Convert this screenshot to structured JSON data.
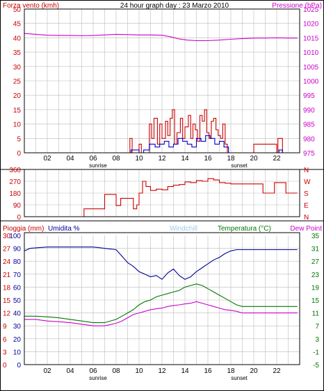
{
  "header": {
    "left_label": "Forza vento (kmh)",
    "title": "24 hour graph day : 23 Marzo 2010",
    "right_label": "Pressione (hPa)"
  },
  "labels": {
    "sunrise": "sunrise",
    "sunset": "sunset",
    "pioggia": "Pioggia (mm)",
    "umidita": "Umidita %",
    "windchill": "Windchill",
    "temperatura": "Temperatura (°C)",
    "dewpoint": "Dew Point"
  },
  "colors": {
    "wind": "#cc0000",
    "avgwind": "#0000cc",
    "pressure": "#cc00cc",
    "direction": "#cc0000",
    "humidity": "#000099",
    "rain": "#cc0000",
    "temperature": "#007700",
    "dewpoint": "#cc00cc",
    "windchill": "#99ccee",
    "grid": "#bbbbbb"
  },
  "chart_data": [
    {
      "type": "line",
      "name": "wind_pressure",
      "xticks": [
        "02",
        "04",
        "06",
        "08",
        "10",
        "12",
        "14",
        "16",
        "18",
        "20",
        "22"
      ],
      "xlim": [
        0,
        24
      ],
      "y_left": {
        "ticks": [
          "0",
          "5",
          "10",
          "15",
          "20",
          "25",
          "30",
          "35",
          "40",
          "45",
          "50"
        ],
        "ylim": [
          0,
          50
        ]
      },
      "y_right": {
        "ticks": [
          "975",
          "980",
          "985",
          "990",
          "995",
          "1000",
          "1005",
          "1010",
          "1015",
          "1020",
          "1025"
        ],
        "ylim": [
          975,
          1025
        ]
      },
      "series": [
        {
          "key": "pressure",
          "axis": "right",
          "x": [
            0,
            1,
            2,
            3,
            4,
            5,
            6,
            7,
            8,
            9,
            10,
            11,
            12,
            12.8,
            13.5,
            14.2,
            15,
            16,
            17,
            18,
            19,
            20,
            21,
            22,
            23,
            23.8
          ],
          "y": [
            1016.5,
            1016.2,
            1015.9,
            1015.8,
            1015.8,
            1015.7,
            1015.8,
            1016,
            1016.2,
            1016.1,
            1016,
            1016,
            1015.9,
            1015.3,
            1014.6,
            1014.2,
            1014,
            1014,
            1014.2,
            1014.5,
            1014.7,
            1014.9,
            1014.9,
            1015,
            1014.9,
            1014.9
          ]
        },
        {
          "key": "wind",
          "axis": "left",
          "step": true,
          "x": [
            0,
            9,
            9.2,
            9.4,
            10,
            10.2,
            10.4,
            10.9,
            11.1,
            11.3,
            11.6,
            11.8,
            12,
            12.3,
            12.5,
            12.7,
            12.9,
            13.1,
            13.3,
            13.6,
            13.8,
            14,
            14.3,
            14.5,
            14.7,
            14.9,
            15.1,
            15.3,
            15.5,
            15.7,
            15.9,
            16.1,
            16.3,
            16.5,
            16.7,
            16.9,
            17.1,
            17.3,
            17.5,
            17.7,
            17.9,
            19.8,
            20,
            22,
            22.1,
            22.5,
            23.8
          ],
          "y": [
            0,
            0,
            5,
            0,
            3,
            0,
            0,
            10,
            5,
            12,
            3,
            10,
            5,
            11,
            6,
            12,
            15,
            3,
            7,
            12,
            5,
            9,
            13,
            5,
            10,
            8,
            4,
            13,
            11,
            15,
            7,
            5,
            11,
            12,
            8,
            6,
            5,
            10,
            3,
            0,
            0,
            0,
            3,
            0,
            5,
            0,
            0
          ]
        },
        {
          "key": "avgwind",
          "axis": "left",
          "step": true,
          "x": [
            0,
            9,
            9.3,
            10,
            10.4,
            10.9,
            11.4,
            11.8,
            12.2,
            12.6,
            13,
            13.4,
            13.8,
            14.2,
            14.6,
            15,
            15.4,
            15.8,
            16.2,
            16.6,
            17,
            17.4,
            17.8,
            22,
            22.2,
            22.5,
            23.8
          ],
          "y": [
            0,
            0,
            1,
            0,
            1,
            3,
            2,
            3,
            4,
            2,
            3,
            5,
            4,
            3,
            2,
            5,
            4,
            6,
            5,
            3,
            4,
            2,
            0,
            0,
            1,
            0,
            0
          ]
        }
      ]
    },
    {
      "type": "line",
      "name": "wind_direction",
      "xticks": [
        "02",
        "04",
        "06",
        "08",
        "10",
        "12",
        "14",
        "16",
        "18",
        "20",
        "22"
      ],
      "xlim": [
        0,
        24
      ],
      "y_left": {
        "ticks": [
          "0",
          "90",
          "180",
          "270",
          "360"
        ],
        "ylim": [
          0,
          360
        ]
      },
      "y_right": {
        "ticks": [
          "N",
          "E",
          "S",
          "W",
          "N"
        ]
      },
      "series": [
        {
          "key": "direction",
          "step": true,
          "x": [
            0,
            5,
            5.2,
            6.8,
            7,
            7.8,
            8,
            8.4,
            9,
            9.5,
            9.8,
            10,
            10.3,
            10.6,
            11,
            11.5,
            12,
            12.5,
            13,
            13.5,
            14,
            14.5,
            15,
            15.5,
            16,
            16.5,
            17,
            17.5,
            18,
            19,
            20,
            20.6,
            20.8,
            21.6,
            21.8,
            22.3,
            22.8,
            23.8
          ],
          "y": [
            0,
            0,
            60,
            60,
            170,
            170,
            85,
            140,
            140,
            60,
            90,
            180,
            270,
            230,
            200,
            210,
            205,
            230,
            240,
            245,
            265,
            260,
            275,
            270,
            290,
            280,
            260,
            255,
            250,
            250,
            250,
            250,
            180,
            180,
            260,
            260,
            180,
            180
          ]
        }
      ]
    },
    {
      "type": "line",
      "name": "rain_humidity_temperature",
      "xticks": [
        "02",
        "04",
        "06",
        "08",
        "10",
        "12",
        "14",
        "16",
        "18",
        "20",
        "22"
      ],
      "xlim": [
        0,
        24
      ],
      "y_rain": {
        "ticks": [
          "0",
          "3",
          "6",
          "9",
          "12",
          "15",
          "18",
          "21",
          "24",
          "27",
          "30"
        ],
        "ylim": [
          0,
          30
        ]
      },
      "y_humidity": {
        "ticks": [
          "0",
          "10",
          "20",
          "30",
          "40",
          "50",
          "60",
          "70",
          "80",
          "90",
          "100"
        ],
        "ylim": [
          0,
          100
        ]
      },
      "y_temperature": {
        "ticks": [
          "-5",
          "-1",
          "3",
          "7",
          "11",
          "15",
          "19",
          "23",
          "27",
          "31",
          "35"
        ],
        "ylim": [
          -5,
          35
        ]
      },
      "series": [
        {
          "key": "humidity",
          "axis": "humidity",
          "x": [
            0,
            0.5,
            2,
            4,
            6,
            7,
            8,
            8.5,
            9,
            9.5,
            10,
            10.5,
            11,
            11.5,
            12,
            12.5,
            13,
            13.5,
            14,
            14.5,
            15,
            15.5,
            16,
            16.5,
            17,
            17.5,
            18,
            18.5,
            19,
            20,
            21,
            22,
            23,
            23.8
          ],
          "y": [
            88,
            90,
            91,
            91,
            91,
            90,
            89,
            84,
            79,
            76,
            72,
            70,
            68,
            69,
            66,
            71,
            74,
            69,
            66,
            68,
            72,
            75,
            78,
            81,
            83,
            86,
            88,
            89,
            89,
            89,
            89,
            89,
            89,
            89
          ]
        },
        {
          "key": "temperature",
          "axis": "temperature",
          "x": [
            0,
            1,
            2,
            3,
            4,
            5,
            6,
            7,
            8,
            8.5,
            9,
            9.5,
            10,
            10.5,
            11,
            11.5,
            12,
            12.5,
            13,
            13.5,
            14,
            14.5,
            15,
            15.5,
            16,
            16.5,
            17,
            17.5,
            18,
            18.5,
            19,
            20,
            21,
            22,
            23,
            23.8
          ],
          "y": [
            10,
            10,
            9.8,
            9.5,
            9,
            8.5,
            8,
            8,
            9,
            10,
            11,
            12,
            13.5,
            14.5,
            15,
            16,
            16.5,
            17,
            17.5,
            18,
            19,
            19.5,
            20,
            19.5,
            18.5,
            17.5,
            16.5,
            15.5,
            14.5,
            13.5,
            13,
            13,
            13,
            13,
            13,
            13
          ]
        },
        {
          "key": "dewpoint",
          "axis": "temperature",
          "x": [
            0,
            1,
            2,
            3,
            4,
            5,
            6,
            7,
            8,
            8.5,
            9,
            9.5,
            10,
            10.5,
            11,
            11.5,
            12,
            12.5,
            13,
            13.5,
            14,
            14.5,
            15,
            15.5,
            16,
            16.5,
            17,
            17.5,
            18,
            18.5,
            19,
            20,
            21,
            22,
            23,
            23.8
          ],
          "y": [
            9,
            9,
            8.5,
            8.3,
            8,
            7.5,
            7,
            7,
            7.8,
            8.5,
            9.5,
            10.5,
            11,
            11.5,
            12,
            12.3,
            12.5,
            13,
            13.3,
            13.5,
            13.8,
            14,
            14.5,
            14,
            13.5,
            13,
            12.5,
            12,
            11.8,
            11.5,
            11,
            11,
            11,
            11,
            11,
            11
          ]
        },
        {
          "key": "rain",
          "axis": "rain",
          "x": [
            0,
            23.8
          ],
          "y": [
            0,
            0
          ]
        }
      ]
    }
  ]
}
